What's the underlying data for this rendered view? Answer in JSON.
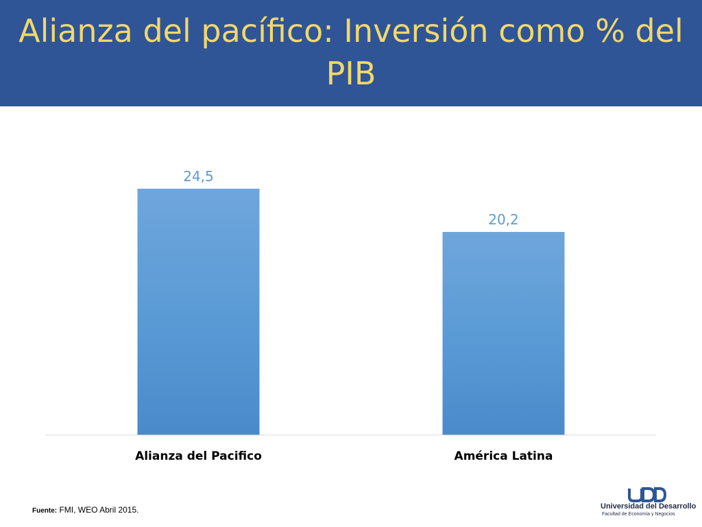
{
  "header": {
    "title": "Alianza del pacífico: Inversión como % del PIB"
  },
  "chart_data": {
    "type": "bar",
    "title": "",
    "categories": [
      "Alianza del Pacifico",
      "América Latina"
    ],
    "values": [
      24.5,
      20.2
    ],
    "data_labels": [
      "24,5",
      "20,2"
    ],
    "xlabel": "",
    "ylabel": "",
    "ylim": [
      0,
      24.5
    ],
    "grid": false,
    "legend": "none",
    "colors": {
      "bar": "#5b9bd5",
      "bar_top": "#6fa6dc",
      "bar_bottom": "#4a8acb",
      "data_label": "#5b9bd5",
      "axis": "#d9d9d9"
    }
  },
  "footer": {
    "source_label": "Fuente:",
    "source_text": " FMI, WEO Abril 2015."
  },
  "logo": {
    "mark": "UDD",
    "name": "Universidad del Desarrollo",
    "faculty": "Facultad de Economía y Negocios",
    "color": "#2f5597"
  }
}
